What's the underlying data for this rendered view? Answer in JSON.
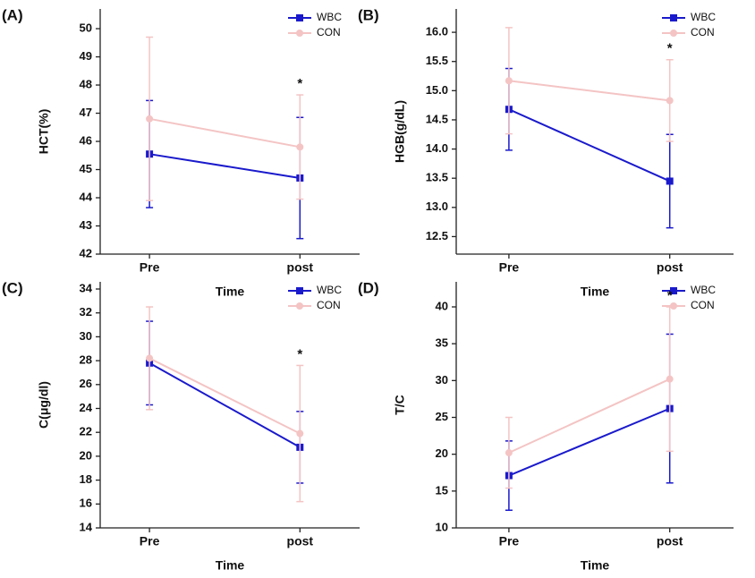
{
  "chart_data": [
    {
      "type": "line",
      "label": "(A)",
      "ylabel": "HCT(%)",
      "xlabel": "Time",
      "annotation": "*",
      "categories": [
        "Pre",
        "post"
      ],
      "ylim": [
        42,
        50.7
      ],
      "yticks": [
        42,
        43,
        44,
        45,
        46,
        47,
        48,
        49,
        50
      ],
      "legend": "upper right",
      "series": [
        {
          "name": "WBC",
          "color": "#1a1acc",
          "marker": "square",
          "values": [
            45.55,
            44.7
          ],
          "errors": [
            1.9,
            2.15
          ]
        },
        {
          "name": "CON",
          "color": "#f4c4c4",
          "marker": "circle",
          "values": [
            46.8,
            45.8
          ],
          "errors": [
            2.9,
            1.85
          ]
        }
      ]
    },
    {
      "type": "line",
      "label": "(B)",
      "ylabel": "HGB(g/dL)",
      "xlabel": "Time",
      "annotation": "*",
      "categories": [
        "Pre",
        "post"
      ],
      "ylim": [
        12.2,
        16.4
      ],
      "yticks": [
        12.5,
        {
          "value": 13,
          "label": "13.0"
        },
        13.5,
        {
          "value": 14,
          "label": "14.0"
        },
        14.5,
        {
          "value": 15,
          "label": "15.0"
        },
        15.5,
        {
          "value": 16,
          "label": "16.0"
        }
      ],
      "legend": "upper right",
      "series": [
        {
          "name": "WBC",
          "color": "#1a1acc",
          "marker": "square",
          "values": [
            14.68,
            13.45
          ],
          "errors": [
            0.7,
            0.8
          ]
        },
        {
          "name": "CON",
          "color": "#f4c4c4",
          "marker": "circle",
          "values": [
            15.17,
            14.83
          ],
          "errors": [
            0.91,
            0.7
          ]
        }
      ]
    },
    {
      "type": "line",
      "label": "(C)",
      "ylabel": "C(μg/dl)",
      "xlabel": "Time",
      "annotation": "*",
      "categories": [
        "Pre",
        "post"
      ],
      "ylim": [
        14,
        34.6
      ],
      "yticks": [
        14,
        16,
        18,
        20,
        22,
        24,
        26,
        28,
        30,
        32,
        34
      ],
      "legend": "upper right",
      "series": [
        {
          "name": "WBC",
          "color": "#1a1acc",
          "marker": "square",
          "values": [
            27.8,
            20.75
          ],
          "errors": [
            3.5,
            3.0
          ]
        },
        {
          "name": "CON",
          "color": "#f4c4c4",
          "marker": "circle",
          "values": [
            28.2,
            21.9
          ],
          "errors": [
            4.3,
            5.7
          ]
        }
      ]
    },
    {
      "type": "line",
      "label": "(D)",
      "ylabel": "T/C",
      "xlabel": "Time",
      "annotation": "*",
      "categories": [
        "Pre",
        "post"
      ],
      "ylim": [
        10,
        43.4
      ],
      "yticks": [
        10,
        15,
        20,
        25,
        30,
        35,
        40
      ],
      "legend": "upper right",
      "series": [
        {
          "name": "WBC",
          "color": "#1a1acc",
          "marker": "square",
          "values": [
            17.1,
            26.2
          ],
          "errors": [
            4.7,
            10.1
          ]
        },
        {
          "name": "CON",
          "color": "#f4c4c4",
          "marker": "circle",
          "values": [
            20.2,
            30.2
          ],
          "errors": [
            4.8,
            9.8
          ]
        }
      ]
    }
  ]
}
